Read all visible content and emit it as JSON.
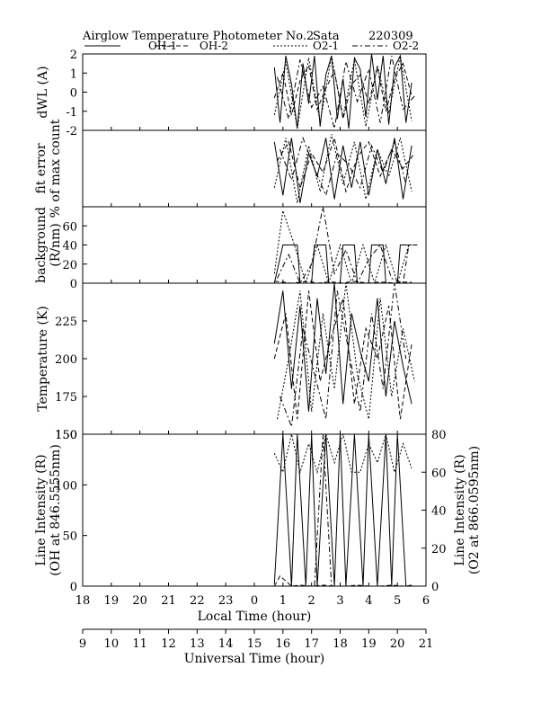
{
  "header": {
    "title": "Airglow Temperature Photometer No.2",
    "site": "Sata",
    "date": "220309"
  },
  "legend": [
    {
      "name": "OH-1",
      "style": "solid"
    },
    {
      "name": "OH-2",
      "style": "dashed"
    },
    {
      "name": "O2-1",
      "style": "dotted"
    },
    {
      "name": "O2-2",
      "style": "dashdot"
    }
  ],
  "x_axes": {
    "local": {
      "label": "Local Time (hour)",
      "range": [
        18,
        30
      ],
      "ticks": [
        18,
        19,
        20,
        21,
        22,
        23,
        24,
        25,
        26,
        27,
        28,
        29,
        30
      ],
      "tick_labels": [
        "18",
        "19",
        "20",
        "21",
        "22",
        "23",
        "0",
        "1",
        "2",
        "3",
        "4",
        "5",
        "6"
      ]
    },
    "universal": {
      "label": "Universal Time (hour)",
      "range": [
        9,
        21
      ],
      "ticks": [
        9,
        10,
        11,
        12,
        13,
        14,
        15,
        16,
        17,
        18,
        19,
        20,
        21
      ],
      "tick_labels": [
        "9",
        "10",
        "11",
        "12",
        "13",
        "14",
        "15",
        "16",
        "17",
        "18",
        "19",
        "20",
        "21"
      ]
    }
  },
  "chart_data": [
    {
      "id": "dwl",
      "type": "line",
      "ylabel": "dWL (A)",
      "ylim": [
        -2,
        2
      ],
      "yticks": [
        -2,
        -1,
        0,
        1,
        2
      ],
      "series": [
        {
          "name": "OH-1",
          "x": [
            24.7,
            24.9,
            25.1,
            25.3,
            25.5,
            25.7,
            25.9,
            26.1,
            26.3,
            26.5,
            26.7,
            26.9,
            27.1,
            27.3,
            27.5,
            27.7,
            27.9,
            28.1,
            28.3,
            28.5,
            28.7,
            28.9,
            29.1,
            29.3,
            29.5
          ],
          "y": [
            1.3,
            -1.6,
            1.9,
            0.4,
            -1.9,
            1.5,
            -0.6,
            1.9,
            -1.8,
            0.9,
            1.9,
            -1.4,
            0.7,
            -1.9,
            1.8,
            1.2,
            -1.3,
            2.0,
            -0.4,
            1.9,
            -1.7,
            1.3,
            1.9,
            -1.6,
            0.5
          ]
        },
        {
          "name": "OH-2",
          "x": [
            24.7,
            25.0,
            25.3,
            25.6,
            25.9,
            26.2,
            26.5,
            26.8,
            27.1,
            27.4,
            27.7,
            28.0,
            28.3,
            28.6,
            28.9,
            29.2,
            29.5
          ],
          "y": [
            -0.3,
            1.0,
            -1.2,
            0.6,
            1.4,
            -0.9,
            0.2,
            1.1,
            -1.4,
            0.4,
            0.9,
            -0.6,
            1.3,
            -1.0,
            0.7,
            1.5,
            -0.2
          ]
        },
        {
          "name": "O2-1",
          "x": [
            24.7,
            25.1,
            25.5,
            25.9,
            26.3,
            26.7,
            27.1,
            27.5,
            27.9,
            28.3,
            28.7,
            29.1,
            29.5
          ],
          "y": [
            -1.2,
            1.6,
            -1.9,
            1.8,
            -1.6,
            1.9,
            -1.3,
            1.7,
            -1.8,
            1.4,
            -1.1,
            1.9,
            -1.5
          ]
        },
        {
          "name": "O2-2",
          "x": [
            24.8,
            25.2,
            25.6,
            26.0,
            26.4,
            26.8,
            27.2,
            27.6,
            28.0,
            28.4,
            28.8,
            29.2,
            29.6
          ],
          "y": [
            0.8,
            -1.4,
            1.7,
            -0.8,
            0.3,
            -1.9,
            1.6,
            -0.5,
            1.2,
            -1.6,
            1.9,
            -0.9,
            -0.2
          ]
        }
      ]
    },
    {
      "id": "fit_error",
      "type": "line",
      "ylabel": "fit error",
      "ylabel2": "% of max count",
      "ylim": [
        -2,
        0
      ],
      "yticks": [],
      "series": [
        {
          "name": "OH-1",
          "x": [
            24.7,
            25.0,
            25.3,
            25.6,
            25.9,
            26.2,
            26.5,
            26.8,
            27.1,
            27.4,
            27.7,
            28.0,
            28.3,
            28.6,
            28.9,
            29.2,
            29.5
          ],
          "y": [
            -0.3,
            -1.7,
            -0.2,
            -1.9,
            -0.6,
            -1.2,
            -0.2,
            -1.8,
            -0.4,
            -1.5,
            -0.3,
            -1.7,
            -0.5,
            -1.4,
            -0.2,
            -1.8,
            -0.4
          ]
        },
        {
          "name": "OH-2",
          "x": [
            24.8,
            25.2,
            25.6,
            26.0,
            26.4,
            26.8,
            27.2,
            27.6,
            28.0,
            28.4,
            28.8,
            29.2,
            29.6
          ],
          "y": [
            -0.8,
            -0.3,
            -1.5,
            -0.6,
            -1.1,
            -0.2,
            -1.6,
            -0.7,
            -0.3,
            -1.2,
            -0.5,
            -1.0,
            -0.6
          ]
        },
        {
          "name": "O2-1",
          "x": [
            24.7,
            25.1,
            25.5,
            25.9,
            26.3,
            26.7,
            27.1,
            27.5,
            27.9,
            28.3,
            28.7,
            29.1,
            29.5
          ],
          "y": [
            -1.5,
            -0.2,
            -1.9,
            -0.4,
            -1.6,
            -0.1,
            -1.4,
            -0.3,
            -1.8,
            -0.5,
            -1.2,
            -0.2,
            -1.6
          ]
        },
        {
          "name": "O2-2",
          "x": [
            24.9,
            25.3,
            25.7,
            26.1,
            26.5,
            26.9,
            27.3,
            27.7,
            28.1,
            28.5,
            28.9,
            29.3
          ],
          "y": [
            -0.5,
            -1.3,
            -0.2,
            -1.0,
            -1.7,
            -0.6,
            -0.9,
            -1.5,
            -0.4,
            -1.1,
            -0.3,
            -1.4
          ]
        }
      ]
    },
    {
      "id": "background",
      "type": "line",
      "ylabel": "background",
      "ylabel2": "(R/nm)",
      "ylim": [
        0,
        80
      ],
      "yticks": [
        0,
        20,
        40,
        60
      ],
      "series": [
        {
          "name": "OH-1",
          "x": [
            24.7,
            25.0,
            25.1,
            25.5,
            25.6,
            26.0,
            26.1,
            26.5,
            26.6,
            27.0,
            27.1,
            27.5,
            27.6,
            28.0,
            28.1,
            28.5,
            28.6,
            29.0,
            29.1,
            29.5
          ],
          "y": [
            0,
            40,
            40,
            40,
            0,
            0,
            40,
            40,
            0,
            0,
            40,
            40,
            0,
            0,
            40,
            40,
            0,
            0,
            40,
            40
          ]
        },
        {
          "name": "OH-2",
          "x": [
            24.7,
            25.0,
            25.3,
            25.6,
            25.9,
            26.2,
            26.5,
            26.8,
            27.1,
            27.4,
            27.7,
            28.0,
            28.3,
            28.6,
            28.9,
            29.2,
            29.5
          ],
          "y": [
            2,
            1,
            0,
            1,
            2,
            0,
            1,
            1,
            0,
            2,
            1,
            0,
            1,
            1,
            0,
            1,
            1
          ]
        },
        {
          "name": "O2-1",
          "x": [
            24.7,
            25.0,
            25.4,
            25.8,
            26.2,
            26.6,
            27.0,
            27.4,
            27.8,
            28.2,
            28.6,
            29.0,
            29.4
          ],
          "y": [
            10,
            76,
            40,
            0,
            40,
            0,
            40,
            0,
            40,
            0,
            40,
            0,
            40
          ]
        },
        {
          "name": "O2-2",
          "x": [
            24.8,
            25.2,
            25.6,
            26.0,
            26.4,
            26.8,
            27.2,
            27.6,
            28.0,
            28.4,
            28.8,
            29.2,
            29.4,
            29.7
          ],
          "y": [
            5,
            30,
            0,
            20,
            80,
            10,
            35,
            0,
            25,
            40,
            5,
            0,
            40,
            40
          ]
        }
      ]
    },
    {
      "id": "temperature",
      "type": "line",
      "ylabel": "Temperature (K)",
      "ylim": [
        150,
        250
      ],
      "yticks": [
        150,
        175,
        200,
        225
      ],
      "series": [
        {
          "name": "OH-1",
          "x": [
            24.7,
            25.0,
            25.3,
            25.6,
            25.9,
            26.2,
            26.5,
            26.8,
            27.1,
            27.4,
            27.7,
            28.0,
            28.3,
            28.6,
            28.9,
            29.2,
            29.5
          ],
          "y": [
            210,
            245,
            180,
            235,
            165,
            240,
            190,
            250,
            170,
            230,
            205,
            185,
            240,
            175,
            225,
            195,
            170
          ]
        },
        {
          "name": "OH-2",
          "x": [
            24.7,
            25.1,
            25.5,
            25.9,
            26.3,
            26.7,
            27.1,
            27.5,
            27.9,
            28.3,
            28.7,
            29.1,
            29.5
          ],
          "y": [
            200,
            230,
            160,
            245,
            185,
            215,
            240,
            170,
            220,
            200,
            235,
            160,
            210
          ]
        },
        {
          "name": "O2-1",
          "x": [
            24.8,
            25.2,
            25.6,
            26.0,
            26.4,
            26.8,
            27.2,
            27.6,
            28.0,
            28.4,
            28.8,
            29.2,
            29.6
          ],
          "y": [
            160,
            200,
            245,
            165,
            230,
            180,
            250,
            190,
            160,
            240,
            175,
            220,
            185
          ]
        },
        {
          "name": "O2-2",
          "x": [
            24.9,
            25.3,
            25.7,
            26.1,
            26.5,
            26.9,
            27.3,
            27.7,
            28.1,
            28.5,
            28.9,
            29.3
          ],
          "y": [
            175,
            155,
            220,
            190,
            160,
            245,
            205,
            165,
            230,
            180,
            250,
            200
          ]
        }
      ]
    },
    {
      "id": "intensity",
      "type": "line",
      "ylabel": "Line Intensity (R)",
      "ylabel2": "(OH at 846.5555nm)",
      "ylim": [
        0,
        150
      ],
      "yticks": [
        0,
        50,
        100,
        150
      ],
      "ylabel_right": "Line Intensity (R)",
      "ylabel_right2": "(O2 at 866.0595nm)",
      "ylim_right": [
        0,
        80
      ],
      "yticks_right": [
        0,
        20,
        40,
        60,
        80
      ],
      "series": [
        {
          "name": "OH-1",
          "x": [
            24.7,
            25.0,
            25.3,
            25.5,
            25.8,
            26.0,
            26.2,
            26.5,
            26.8,
            27.0,
            27.2,
            27.5,
            27.8,
            28.0,
            28.3,
            28.6,
            28.8,
            29.0,
            29.3,
            29.5
          ],
          "y": [
            2,
            150,
            0,
            150,
            0,
            150,
            0,
            150,
            0,
            150,
            0,
            150,
            0,
            150,
            0,
            150,
            0,
            150,
            0,
            1
          ]
        },
        {
          "name": "OH-2",
          "x": [
            24.7,
            24.9,
            25.1,
            25.3,
            25.6,
            26.0,
            26.4,
            26.8,
            27.2,
            27.6,
            28.0,
            28.4,
            28.8,
            29.2,
            29.6
          ],
          "y": [
            0,
            10,
            5,
            0,
            1,
            0,
            1,
            0,
            0,
            1,
            0,
            0,
            1,
            0,
            0
          ]
        },
        {
          "name": "O2-1",
          "x": [
            24.7,
            25.0,
            25.3,
            25.6,
            25.9,
            26.2,
            26.5,
            26.8,
            27.1,
            27.4,
            27.7,
            28.0,
            28.3,
            28.6,
            28.9,
            29.2,
            29.5
          ],
          "y": [
            70,
            60,
            80,
            60,
            75,
            60,
            80,
            65,
            80,
            60,
            60,
            75,
            65,
            80,
            60,
            75,
            62
          ]
        },
        {
          "name": "O2-2",
          "x": [
            24.8,
            25.2,
            25.5,
            25.8,
            26.1,
            26.4,
            26.7,
            27.0,
            27.3,
            27.6,
            28.0,
            28.4,
            28.8,
            29.2,
            29.6
          ],
          "y": [
            0,
            0,
            0,
            0,
            0,
            80,
            0,
            0,
            0,
            0,
            0,
            0,
            0,
            0,
            0
          ]
        }
      ]
    }
  ]
}
